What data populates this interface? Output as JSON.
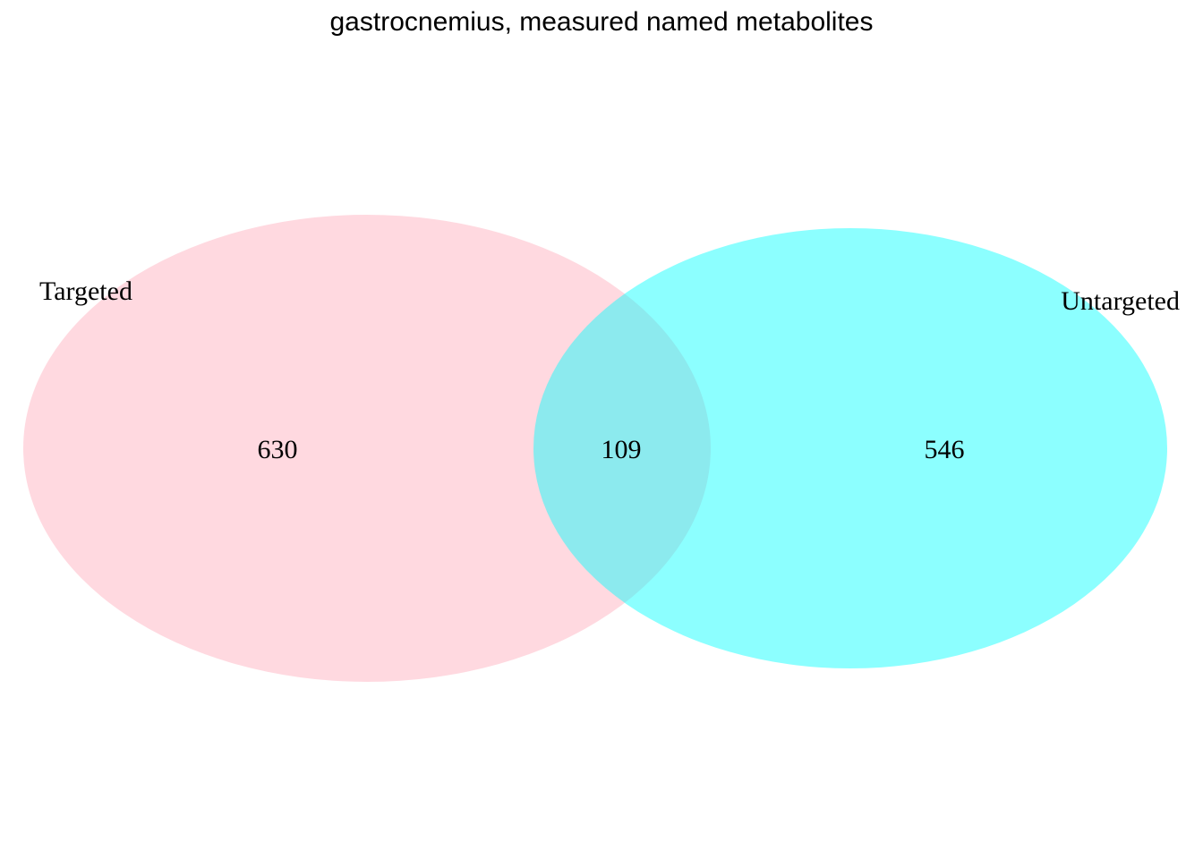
{
  "title": "gastrocnemius, measured named metabolites",
  "sets": [
    {
      "name": "Targeted",
      "color": "#FFC0CB",
      "opacity": 0.6,
      "only_count": "630"
    },
    {
      "name": "Untargeted",
      "color": "#00FFFF",
      "opacity": 0.45,
      "only_count": "546"
    }
  ],
  "intersection": {
    "count": "109"
  }
}
